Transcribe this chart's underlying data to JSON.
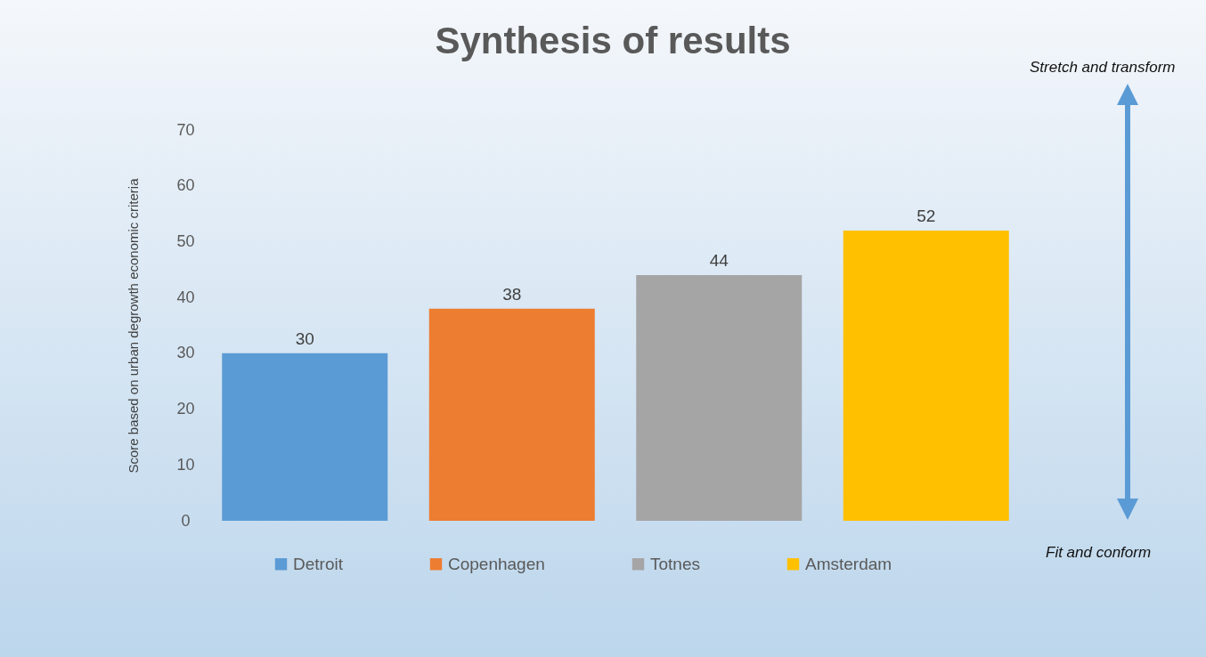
{
  "chart_data": {
    "type": "bar",
    "title": "Synthesis of results",
    "ylabel": "Score based on urban degrowth economic criteria",
    "categories": [
      null
    ],
    "series": [
      {
        "name": "Detroit",
        "color": "#5b9bd5",
        "values": [
          30
        ]
      },
      {
        "name": "Copenhagen",
        "color": "#ed7d31",
        "values": [
          38
        ]
      },
      {
        "name": "Totnes",
        "color": "#a5a5a5",
        "values": [
          44
        ]
      },
      {
        "name": "Amsterdam",
        "color": "#ffc000",
        "values": [
          52
        ]
      }
    ],
    "ylim": [
      0,
      70
    ],
    "yticks": [
      0,
      10,
      20,
      30,
      40,
      50,
      60,
      70
    ],
    "tick_labels": "y",
    "data_labels": true,
    "legend": "bottom",
    "grid": false,
    "annotations": [
      "Stretch and transform",
      "Fit and conform"
    ]
  }
}
